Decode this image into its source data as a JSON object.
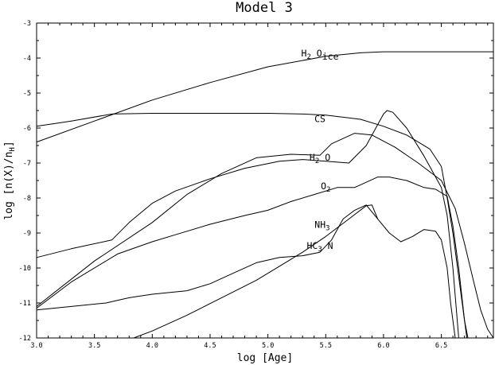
{
  "chart_data": {
    "type": "line",
    "title": "Model 3",
    "xlabel": "log [Age]",
    "ylabel": "log [n(X)/n",
    "ylabel_sub": "H",
    "ylabel_close": "]",
    "xlim": [
      3.0,
      6.95
    ],
    "ylim": [
      -12,
      -3
    ],
    "x_ticks": [
      "3.0",
      "3.5",
      "4.0",
      "4.5",
      "5.0",
      "5.5",
      "6.0",
      "6.5"
    ],
    "x_tick_values": [
      3.0,
      3.5,
      4.0,
      4.5,
      5.0,
      5.5,
      6.0,
      6.5
    ],
    "y_ticks": [
      "-12",
      "-11",
      "-10",
      "-9",
      "-8",
      "-7",
      "-6",
      "-5",
      "-4",
      "-3"
    ],
    "y_tick_values": [
      -12,
      -11,
      -10,
      -9,
      -8,
      -7,
      -6,
      -5,
      -4,
      -3
    ],
    "grid": false,
    "legend": "none",
    "series": [
      {
        "label": {
          "main": "H",
          "sub": "2",
          "rest": " O",
          "sub2": "ice"
        },
        "label_at": [
          5.45,
          -3.95
        ],
        "x": [
          3.0,
          3.5,
          4.0,
          4.5,
          5.0,
          5.5,
          5.8,
          6.0,
          6.3,
          6.6,
          6.95
        ],
        "y": [
          -6.4,
          -5.8,
          -5.2,
          -4.7,
          -4.25,
          -3.95,
          -3.85,
          -3.82,
          -3.82,
          -3.82,
          -3.82
        ]
      },
      {
        "label": {
          "main": "CS"
        },
        "label_at": [
          5.45,
          -5.83
        ],
        "x": [
          3.0,
          3.3,
          3.65,
          4.0,
          4.5,
          5.0,
          5.3,
          5.5,
          5.8,
          6.0,
          6.2,
          6.4,
          6.5,
          6.55,
          6.6,
          6.68,
          6.72
        ],
        "y": [
          -5.95,
          -5.8,
          -5.6,
          -5.58,
          -5.58,
          -5.58,
          -5.6,
          -5.63,
          -5.75,
          -5.95,
          -6.2,
          -6.6,
          -7.1,
          -8.0,
          -9.0,
          -11.0,
          -12.0
        ]
      },
      {
        "label": {
          "main": "H",
          "sub": "2",
          "rest": " O"
        },
        "label_at": [
          5.45,
          -6.93
        ],
        "x": [
          3.0,
          3.5,
          4.0,
          4.3,
          4.6,
          4.9,
          5.2,
          5.45,
          5.55,
          5.75,
          5.9,
          6.1,
          6.3,
          6.5,
          6.62,
          6.7,
          6.78,
          6.84,
          6.9,
          6.95
        ],
        "y": [
          -11.1,
          -9.8,
          -8.7,
          -7.9,
          -7.3,
          -6.85,
          -6.75,
          -6.78,
          -6.45,
          -6.15,
          -6.2,
          -6.55,
          -7.0,
          -7.5,
          -8.3,
          -9.3,
          -10.4,
          -11.2,
          -11.75,
          -12.0
        ]
      },
      {
        "label": {
          "main": "O",
          "sub": "2"
        },
        "label_at": [
          5.5,
          -7.75
        ],
        "x": [
          3.0,
          3.3,
          3.65,
          3.8,
          4.0,
          4.2,
          4.5,
          4.8,
          5.1,
          5.3,
          5.5,
          5.7,
          5.85,
          6.0,
          6.03,
          6.08,
          6.2,
          6.35,
          6.5,
          6.55,
          6.6,
          6.65
        ],
        "y": [
          -9.7,
          -9.45,
          -9.2,
          -8.7,
          -8.15,
          -7.8,
          -7.45,
          -7.15,
          -6.95,
          -6.9,
          -6.95,
          -7.0,
          -6.5,
          -5.6,
          -5.5,
          -5.55,
          -6.0,
          -6.8,
          -7.7,
          -8.5,
          -10.0,
          -12.0
        ]
      },
      {
        "label": {
          "main": "NH",
          "sub": "3"
        },
        "label_at": [
          5.47,
          -8.85
        ],
        "x": [
          3.0,
          3.3,
          3.7,
          4.0,
          4.2,
          4.5,
          4.8,
          5.0,
          5.2,
          5.4,
          5.6,
          5.75,
          5.85,
          5.95,
          6.05,
          6.2,
          6.35,
          6.45,
          6.55,
          6.6,
          6.65,
          6.7,
          6.73
        ],
        "y": [
          -11.15,
          -10.4,
          -9.6,
          -9.25,
          -9.05,
          -8.75,
          -8.5,
          -8.35,
          -8.1,
          -7.9,
          -7.7,
          -7.7,
          -7.55,
          -7.4,
          -7.4,
          -7.5,
          -7.7,
          -7.75,
          -7.95,
          -8.8,
          -10.0,
          -11.5,
          -12.0
        ]
      },
      {
        "label": {
          "main": "HC",
          "sub": "3",
          "rest": " N"
        },
        "label_at": [
          5.45,
          -9.45
        ],
        "x": [
          3.0,
          3.3,
          3.6,
          3.8,
          4.0,
          4.3,
          4.5,
          4.7,
          4.9,
          5.1,
          5.3,
          5.45,
          5.55,
          5.65,
          5.75,
          5.85,
          5.95,
          6.05,
          6.15,
          6.25,
          6.35,
          6.45,
          6.5,
          6.55,
          6.58,
          6.62
        ],
        "y": [
          -11.2,
          -11.1,
          -11.0,
          -10.85,
          -10.75,
          -10.65,
          -10.45,
          -10.15,
          -9.85,
          -9.7,
          -9.65,
          -9.55,
          -9.2,
          -8.6,
          -8.35,
          -8.2,
          -8.6,
          -9.0,
          -9.25,
          -9.1,
          -8.9,
          -8.95,
          -9.2,
          -10.0,
          -11.0,
          -12.0
        ]
      },
      {
        "x": [
          3.84,
          4.0,
          4.3,
          4.6,
          4.9,
          5.1,
          5.3,
          5.5,
          5.7,
          5.85,
          5.9,
          5.95
        ],
        "y": [
          -12.0,
          -11.8,
          -11.35,
          -10.85,
          -10.35,
          -9.95,
          -9.55,
          -9.1,
          -8.6,
          -8.22,
          -8.2,
          -8.6
        ]
      }
    ]
  }
}
